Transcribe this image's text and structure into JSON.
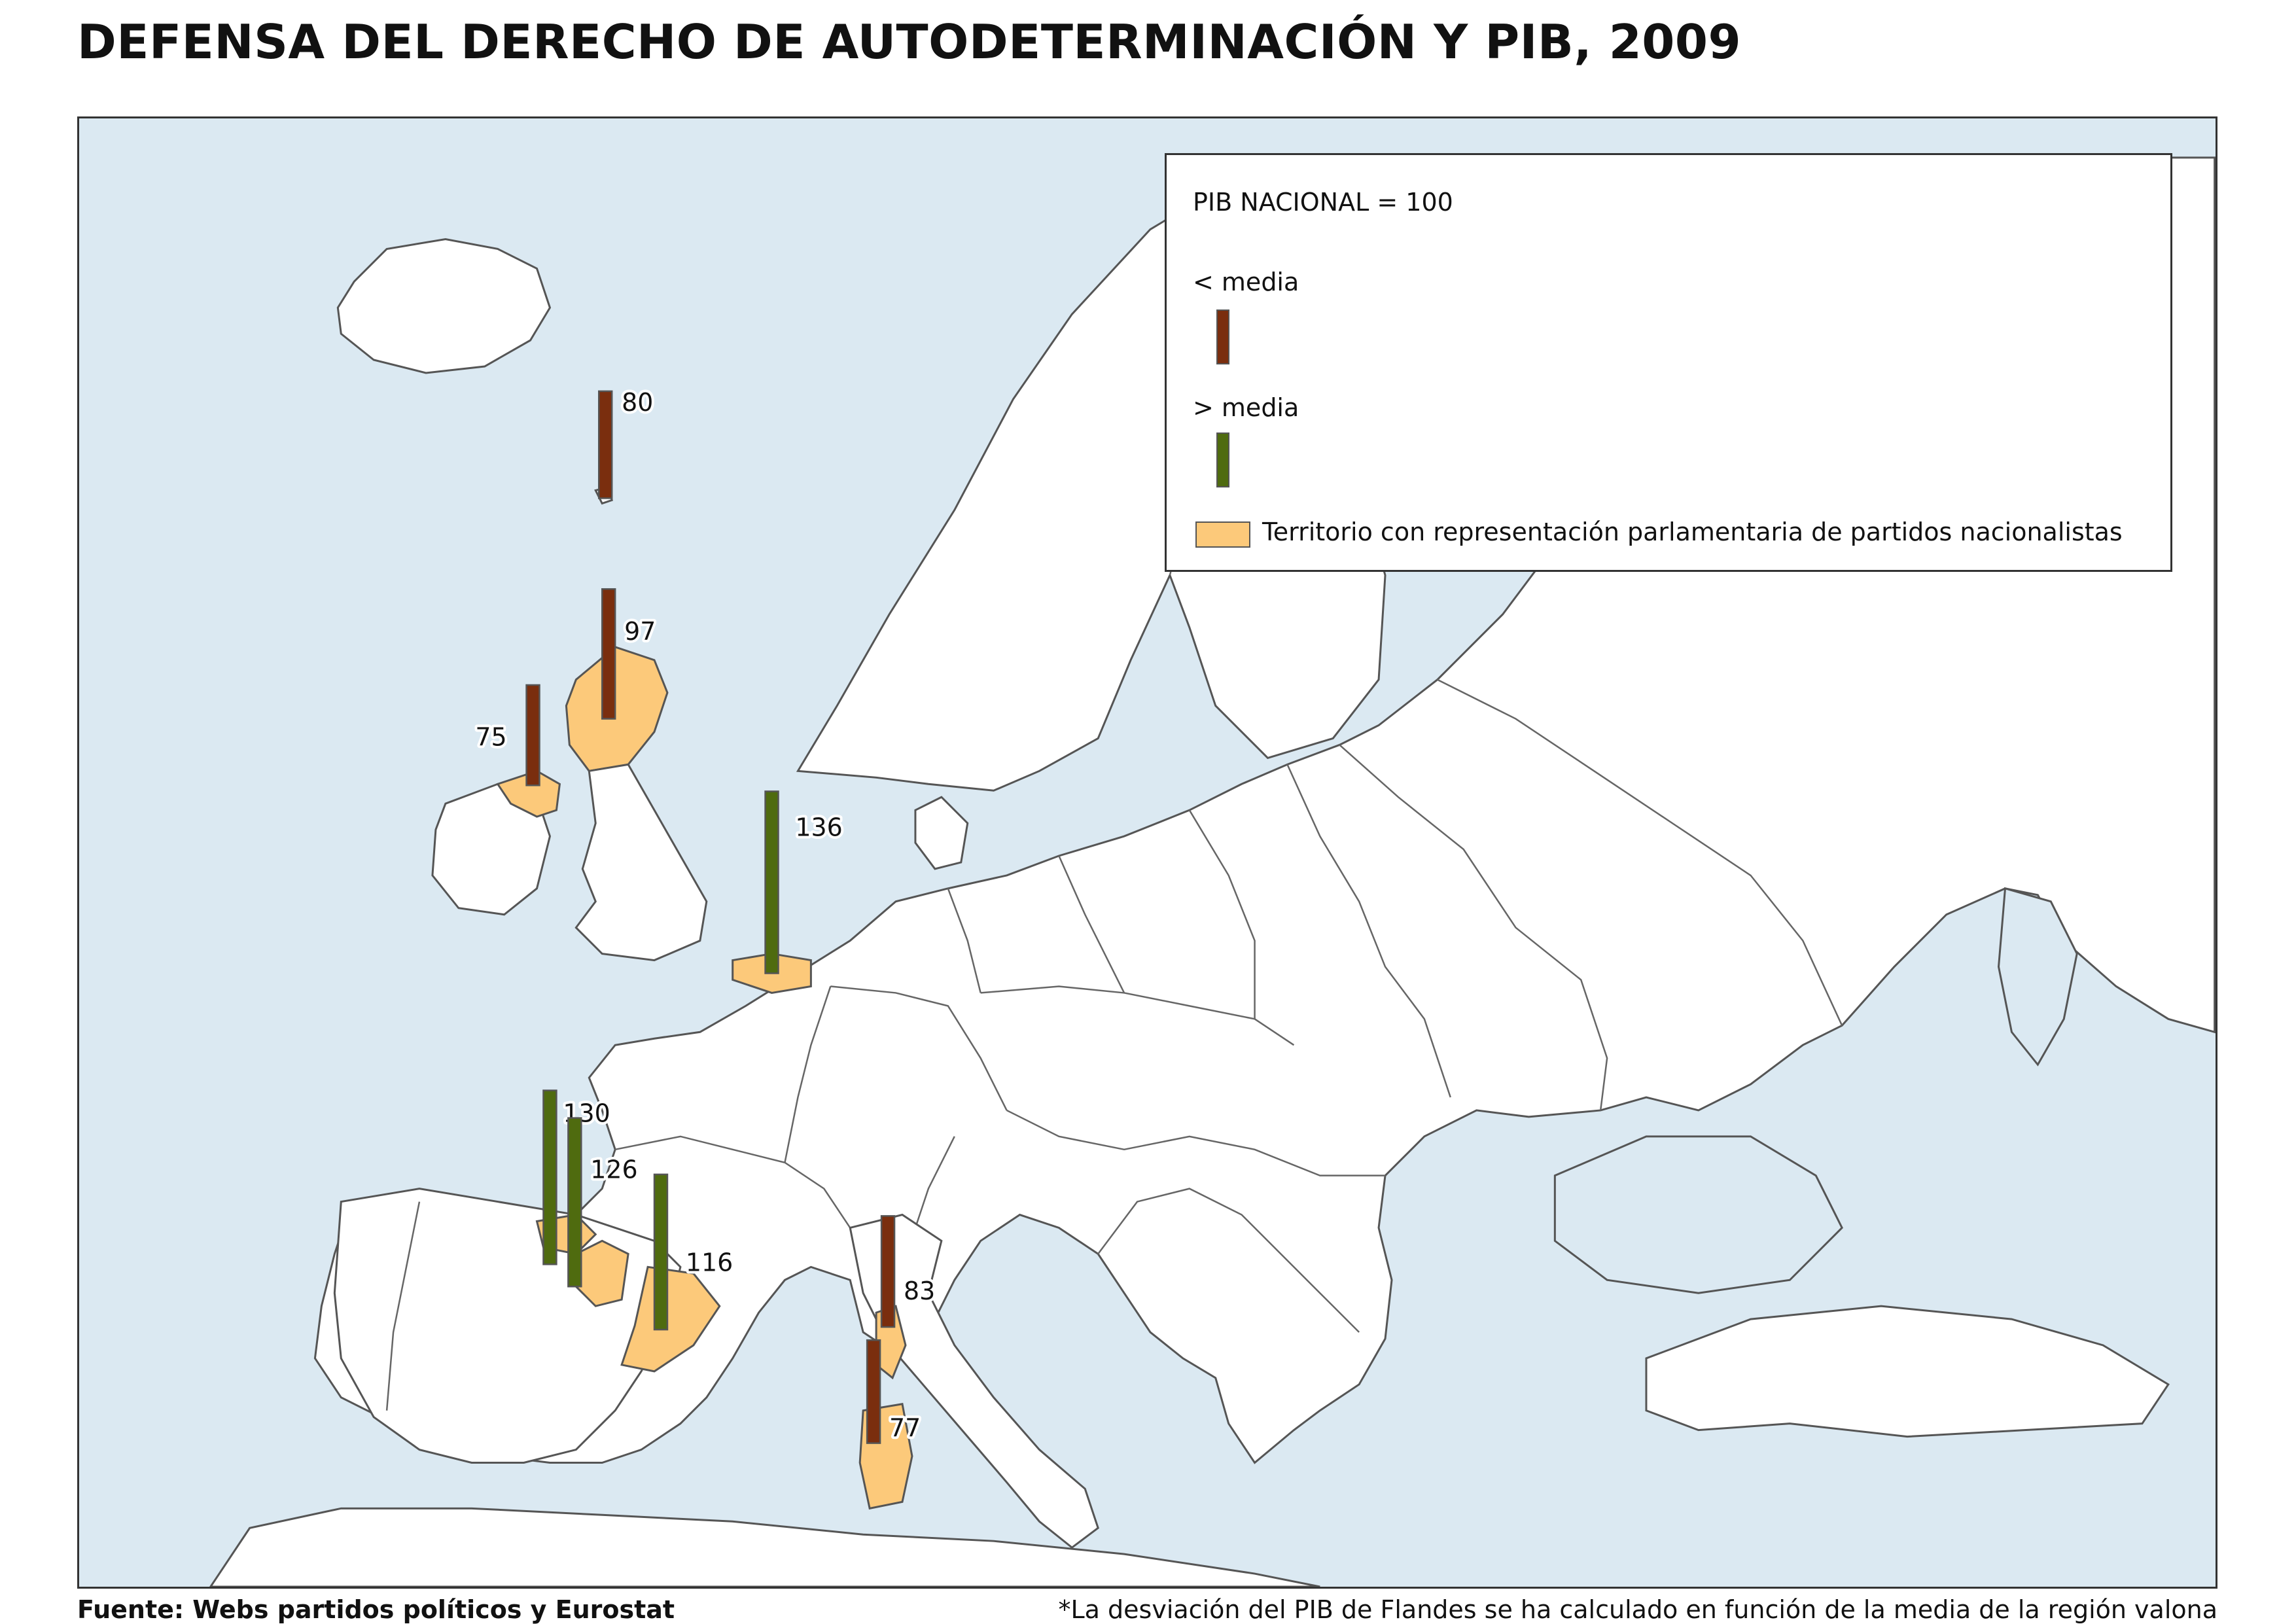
{
  "title": "DEFENSA DEL DERECHO DE AUTODETERMINACIÓN Y PIB, 2009",
  "legend": {
    "heading": "PIB NACIONAL = 100",
    "below_label": "< media",
    "above_label": "> media",
    "territory_label": "Territorio con representación parlamentaria de partidos nacionalistas"
  },
  "colors": {
    "below_average": "#7a2e0e",
    "above_average": "#4f6b0f",
    "nationalist_territory": "#fcc97a",
    "sea": "#dbe9f2",
    "land": "#ffffff"
  },
  "regions": [
    {
      "id": "faroe",
      "value": 80,
      "label": "80",
      "category": "below"
    },
    {
      "id": "scotland",
      "value": 97,
      "label": "97",
      "category": "below"
    },
    {
      "id": "northern-ireland",
      "value": 75,
      "label": "75",
      "category": "below"
    },
    {
      "id": "flanders",
      "value": 136,
      "label": "136",
      "category": "above"
    },
    {
      "id": "basque-country",
      "value": 130,
      "label": "130",
      "category": "above"
    },
    {
      "id": "navarre",
      "value": 126,
      "label": "126",
      "category": "above"
    },
    {
      "id": "catalonia",
      "value": 116,
      "label": "116",
      "category": "above"
    },
    {
      "id": "corsica",
      "value": 83,
      "label": "83",
      "category": "below"
    },
    {
      "id": "sardinia",
      "value": 77,
      "label": "77",
      "category": "below"
    }
  ],
  "footer": {
    "source": "Fuente: Webs partidos políticos y Eurostat",
    "note": "*La desviación del PIB de Flandes se ha calculado en función de la media de la región valona"
  }
}
